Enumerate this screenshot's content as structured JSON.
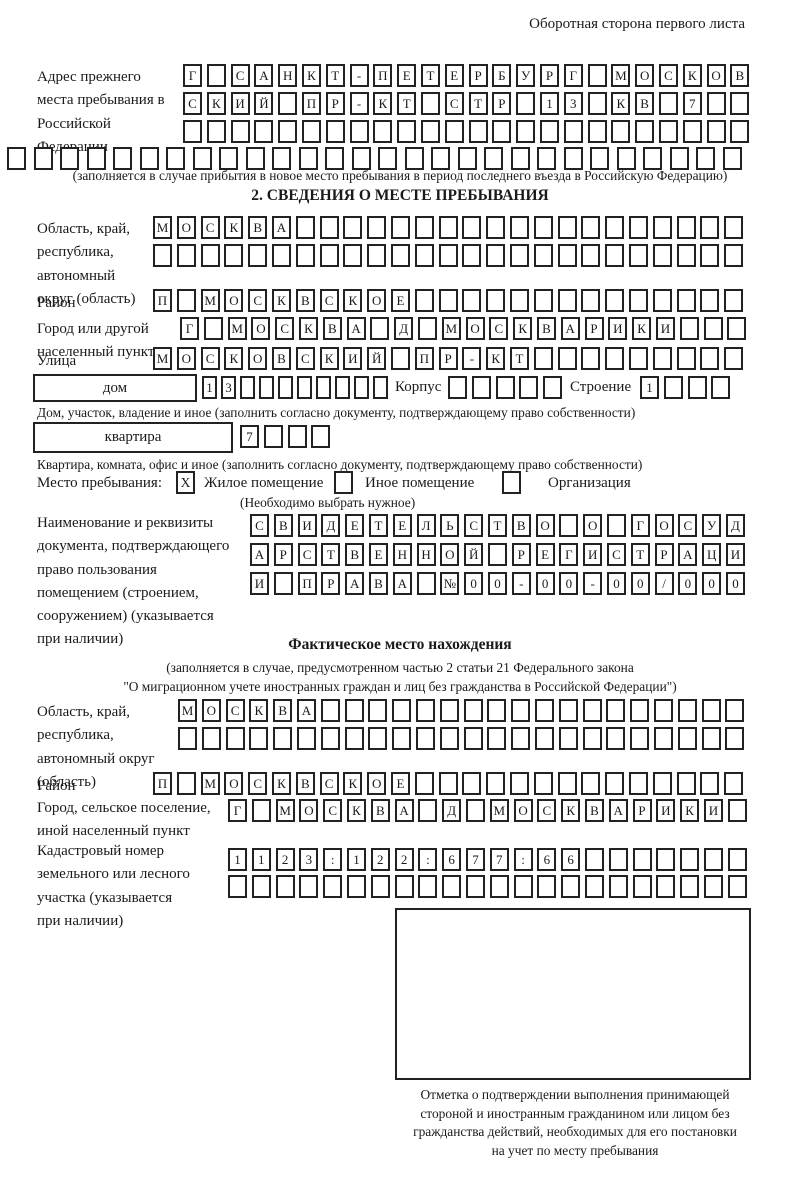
{
  "page": {
    "header_note": "Оборотная сторона первого листа"
  },
  "prev_address": {
    "label": "Адрес прежнего места пребывания в Российской Федерации",
    "row1": "Г САНКТ-ПЕТЕРБУРГ МОСКОВ",
    "row2": "СКИЙ ПР-КТ СТР 13 КВ 7  ",
    "row3": "                        ",
    "row4": "                            ",
    "note": "(заполняется в случае прибытия в новое место пребывания в период последнего въезда в Российскую Федерацию)"
  },
  "stay_info": {
    "title": "2. СВЕДЕНИЯ О МЕСТЕ ПРЕБЫВАНИЯ",
    "region_label": "Область, край, республика, автономный округ (область)",
    "region_row1": "МОСКВА                   ",
    "region_row2": "                         ",
    "district_label": "Район",
    "district_row": "П МОСКВСКОЕ              ",
    "city_label": "Город или другой населенный пункт",
    "city_row": "Г МОСКВА Д МОСКВАРИКИ   ",
    "street_label": "Улица",
    "street_row": "МОСКОВСКИЙ ПР-КТ         ",
    "house_field_label": "дом",
    "house_row": "13        ",
    "korpus_label": "Корпус",
    "korpus_row": "     ",
    "stroenie_label": "Строение",
    "stroenie_row": "1   ",
    "house_note": "Дом, участок, владение и иное (заполнить согласно документу, подтверждающему право собственности)",
    "apartment_field_label": "квартира",
    "apartment_row": "7   ",
    "apartment_note": "Квартира, комната, офис и иное (заполнить согласно документу, подтверждающему право собственности)",
    "stay_place_label": "Место пребывания:",
    "stay_place_mark1": "X",
    "stay_place_opt1": "Жилое помещение",
    "stay_place_mark2": "",
    "stay_place_opt2": "Иное помещение",
    "stay_place_mark3": "",
    "stay_place_opt3": "Организация",
    "stay_place_note": "(Необходимо выбрать нужное)",
    "doc_label": "Наименование и реквизиты документа, подтверждающего право пользования помещением (строением, сооружением) (указывается при наличии)",
    "doc_row1": "СВИДЕТЕЛЬСТВО О ГОСУД",
    "doc_row2": "АРСТВЕННОЙ РЕГИСТРАЦИ",
    "doc_row3": "И ПРАВА №00-00-00/000"
  },
  "actual_location": {
    "title": "Фактическое место нахождения",
    "note_line1": "(заполняется в случае, предусмотренном частью 2 статьи 21 Федерального закона",
    "note_line2": "\"О миграционном учете иностранных граждан и лиц без гражданства в Российской Федерации\")",
    "region_label": "Область, край, республика, автономный округ (область)",
    "region_row1": "МОСКВА                  ",
    "region_row2": "                        ",
    "district_label": "Район",
    "district_row": "П МОСКВСКОЕ              ",
    "city_label": "Город, сельское поселение, иной населенный пункт",
    "city_row": "Г МОСКВА Д МОСКВАРИКИ ",
    "cadastre_label": "Кадастровый номер земельного или лесного участка (указывается при наличии)",
    "cadastre_row1": "1123:122:677:66       ",
    "cadastre_row2": "                      ",
    "stamp_caption_line1": "Отметка о подтверждении выполнения принимающей",
    "stamp_caption_line2": "стороной и иностранным гражданином или лицом без",
    "stamp_caption_line3": "гражданства действий, необходимых для его постановки",
    "stamp_caption_line4": "на учет по месту пребывания"
  }
}
